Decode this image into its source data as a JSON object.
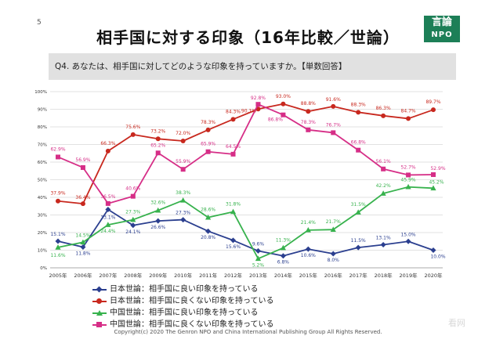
{
  "page": {
    "slide_number": "5",
    "title": "相手国に対する印象（16年比較／世論）",
    "logo_top": "言論",
    "logo_bottom": "NPO",
    "question": "Q4. あなたは、相手国に対してどのような印象を持っていますか。【単数回答】",
    "copyright": "Copyright(c) 2020 The Genron NPO and China International Publishing Group All Rights Reserved.",
    "watermark": "看网"
  },
  "chart_data": {
    "type": "line",
    "title": "相手国に対する印象（16年比較／世論）",
    "xlabel": "",
    "ylabel": "",
    "ylim": [
      0,
      100
    ],
    "yticks": [
      "0%",
      "10%",
      "20%",
      "30%",
      "40%",
      "50%",
      "60%",
      "70%",
      "80%",
      "90%",
      "100%"
    ],
    "grid": true,
    "legend_position": "bottom",
    "categories": [
      "2005年",
      "2006年",
      "2007年",
      "2008年",
      "2009年",
      "2010年",
      "2011年",
      "2012年",
      "2013年",
      "2014年",
      "2015年",
      "2016年",
      "2017年",
      "2018年",
      "2019年",
      "2020年"
    ],
    "series": [
      {
        "name": "日本世論：相手国に良い印象を持っている",
        "color": "#2b3f8f",
        "marker": "diamond",
        "values": [
          15.1,
          11.8,
          33.1,
          24.1,
          26.6,
          27.3,
          20.8,
          15.6,
          9.6,
          6.8,
          10.6,
          8.0,
          11.5,
          13.1,
          15.0,
          10.0
        ],
        "labels": [
          "15.1%",
          "11.8%",
          "33.1%",
          "24.1%",
          "26.6%",
          "27.3%",
          "20.8%",
          "15.6%",
          "9.6%",
          "6.8%",
          "10.6%",
          "8.0%",
          "11.5%",
          "13.1%",
          "15.0%",
          "10.0%"
        ]
      },
      {
        "name": "日本世論：相手国に良くない印象を持っている",
        "color": "#c8281e",
        "marker": "circle",
        "values": [
          37.9,
          36.4,
          66.3,
          75.6,
          73.2,
          72.0,
          78.3,
          84.3,
          90.1,
          93.0,
          88.8,
          91.6,
          88.3,
          86.3,
          84.7,
          89.7
        ],
        "labels": [
          "37.9%",
          "36.4%",
          "66.3%",
          "75.6%",
          "73.2%",
          "72.0%",
          "78.3%",
          "84.3%",
          "90.1%",
          "93.0%",
          "88.8%",
          "91.6%",
          "88.3%",
          "86.3%",
          "84.7%",
          "89.7%"
        ]
      },
      {
        "name": "中国世論：相手国に良い印象を持っている",
        "color": "#37b24d",
        "marker": "triangle",
        "values": [
          11.6,
          14.5,
          24.4,
          27.3,
          32.6,
          38.3,
          28.6,
          31.8,
          5.2,
          11.3,
          21.4,
          21.7,
          31.5,
          42.2,
          45.9,
          45.2
        ],
        "labels": [
          "11.6%",
          "14.5%",
          "24.4%",
          "27.3%",
          "32.6%",
          "38.3%",
          "28.6%",
          "31.8%",
          "5.2%",
          "11.3%",
          "21.4%",
          "21.7%",
          "31.5%",
          "42.2%",
          "45.9%",
          "45.2%"
        ]
      },
      {
        "name": "中国世論：相手国に良くない印象を持っている",
        "color": "#d62e87",
        "marker": "square",
        "values": [
          62.9,
          56.9,
          36.5,
          40.6,
          65.2,
          55.9,
          65.9,
          64.5,
          92.8,
          86.8,
          78.3,
          76.7,
          66.8,
          56.1,
          52.7,
          52.9
        ],
        "labels": [
          "62.9%",
          "56.9%",
          "36.5%",
          "40.6%",
          "65.2%",
          "55.9%",
          "65.9%",
          "64.5%",
          "92.8%",
          "86.8%",
          "78.3%",
          "76.7%",
          "66.8%",
          "56.1%",
          "52.7%",
          "52.9%"
        ]
      }
    ]
  }
}
